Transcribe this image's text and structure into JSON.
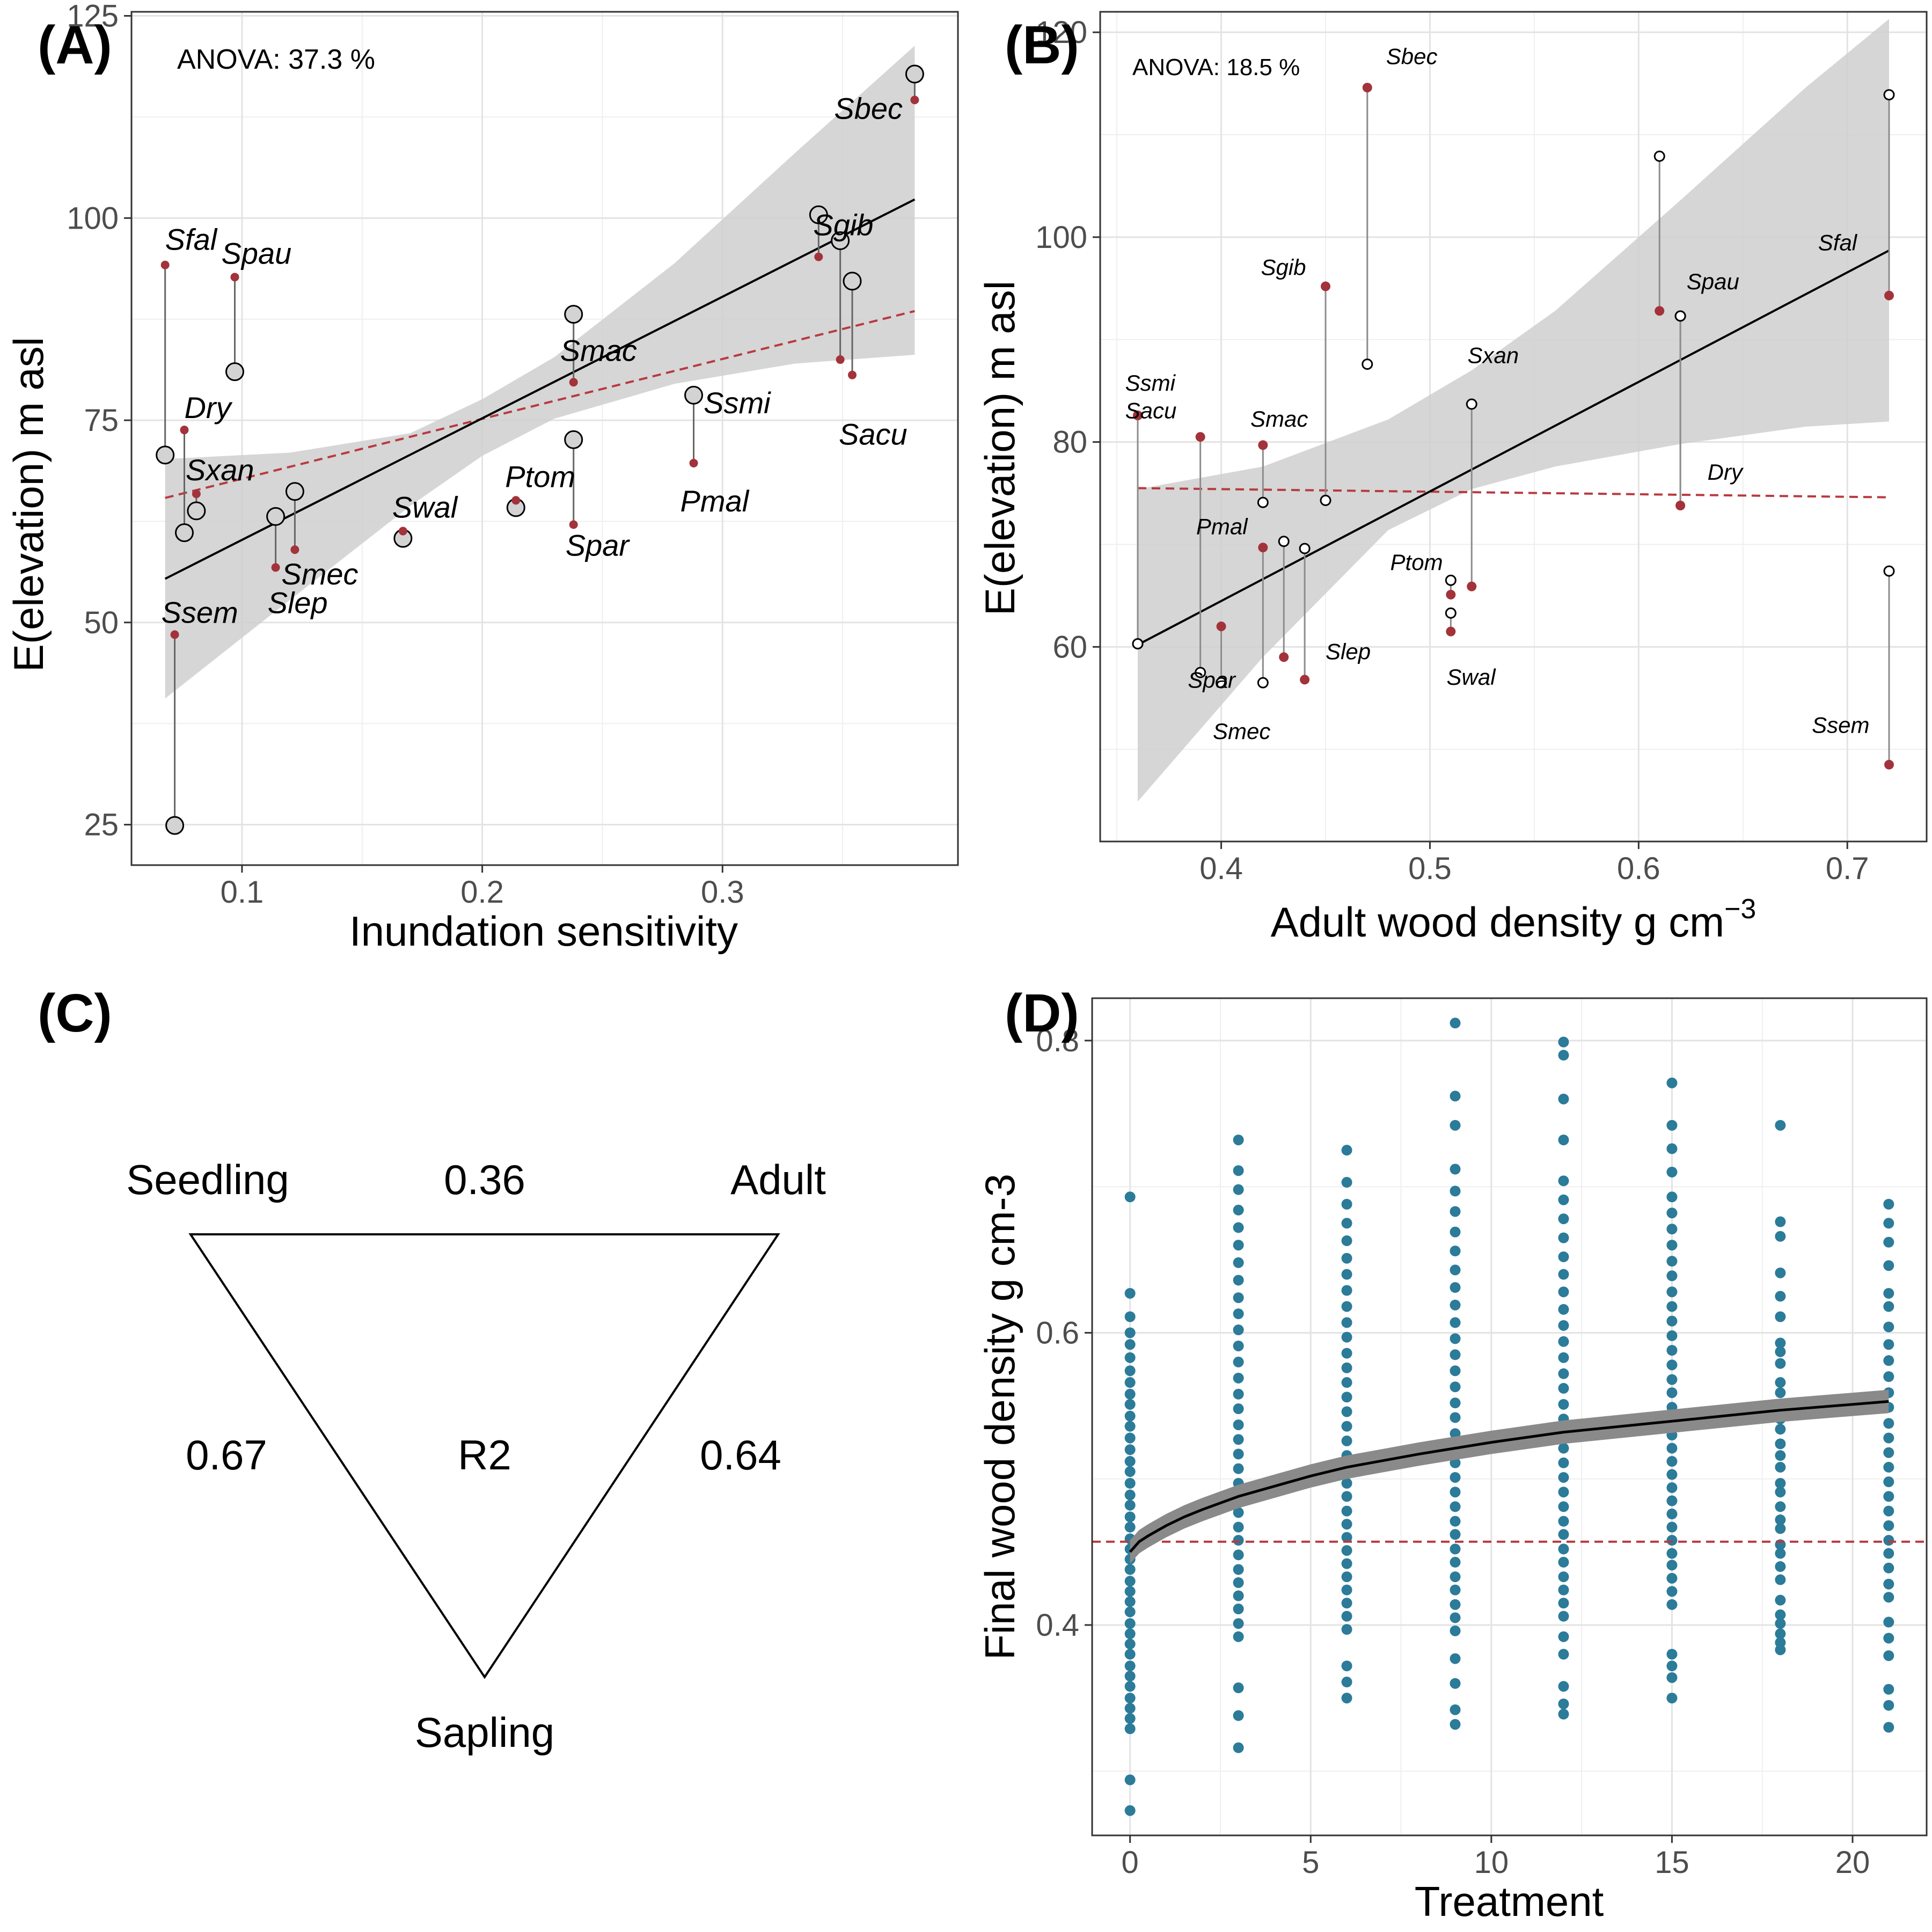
{
  "colors": {
    "seedling_point": "#a3323b",
    "fit_line": "#000000",
    "dashed_line": "#b83a40",
    "ribbon": "#cfcfcf",
    "panel_d_points": "#2b7b99",
    "panel_d_ribbon": "#8a8a8a"
  },
  "chart_data": [
    {
      "panel_label": "(A)",
      "type": "scatter",
      "annotation": "ANOVA: 37.3 %",
      "xlabel": "Inundation sensitivity",
      "ylabel": "E(elevation) m asl",
      "xlim": [
        0.054,
        0.398
      ],
      "ylim": [
        20,
        125.5
      ],
      "xticks": [
        0.1,
        0.2,
        0.3
      ],
      "xtick_labels": [
        "0.1",
        "0.2",
        "0.3"
      ],
      "yticks": [
        25,
        50,
        75,
        100,
        125
      ],
      "ytick_labels": [
        "25",
        "50",
        "75",
        "100",
        "125"
      ],
      "grid": true,
      "species": [
        {
          "label": "Sfal",
          "x": 0.068,
          "seedling": 94.2,
          "adult": 70.7
        },
        {
          "label": "Ssem",
          "x": 0.072,
          "seedling": 48.5,
          "adult": 24.9
        },
        {
          "label": "Dry",
          "x": 0.076,
          "seedling": 73.8,
          "adult": 61.1
        },
        {
          "label": "Sxan",
          "x": 0.081,
          "seedling": 65.9,
          "adult": 63.8
        },
        {
          "label": "Spau",
          "x": 0.097,
          "seedling": 92.7,
          "adult": 81.0
        },
        {
          "label": "Slep",
          "x": 0.114,
          "seedling": 56.8,
          "adult": 63.1
        },
        {
          "label": "Smec",
          "x": 0.122,
          "seedling": 59.0,
          "adult": 66.2
        },
        {
          "label": "Swal",
          "x": 0.167,
          "seedling": 61.3,
          "adult": 60.4
        },
        {
          "label": "Ptom",
          "x": 0.214,
          "seedling": 65.1,
          "adult": 64.2
        },
        {
          "label": "Smac",
          "x": 0.238,
          "seedling": 79.7,
          "adult": 88.1
        },
        {
          "label": "Spar",
          "x": 0.238,
          "seedling": 62.1,
          "adult": 72.6
        },
        {
          "label": "Pmal",
          "x": 0.288,
          "seedling": 69.7,
          "adult": 78.1
        },
        {
          "label": "Sgib",
          "x": 0.34,
          "seedling": 95.2,
          "adult": 100.4
        },
        {
          "label": "Ssmi",
          "x": 0.349,
          "seedling": 82.5,
          "adult": 97.2
        },
        {
          "label": "Sacu",
          "x": 0.354,
          "seedling": 80.6,
          "adult": 92.2
        },
        {
          "label": "Sbec",
          "x": 0.38,
          "seedling": 114.6,
          "adult": 117.8
        }
      ],
      "fit_line": {
        "x": [
          0.068,
          0.38
        ],
        "y": [
          55.4,
          102.3
        ]
      },
      "dashed_line": {
        "x": [
          0.068,
          0.38
        ],
        "y": [
          65.4,
          88.5
        ]
      },
      "ribbon": {
        "x": [
          0.068,
          0.12,
          0.17,
          0.2,
          0.23,
          0.28,
          0.33,
          0.38
        ],
        "lower": [
          40.6,
          52.8,
          64.4,
          70.6,
          75.2,
          79.5,
          82.0,
          83.1
        ],
        "upper": [
          70.2,
          71.0,
          73.4,
          77.6,
          82.8,
          94.4,
          108.0,
          121.3
        ]
      }
    },
    {
      "panel_label": "(B)",
      "type": "scatter",
      "annotation": "ANOVA: 18.5 %",
      "xlabel": "Adult wood density g cm",
      "xlabel_superscript": "−3",
      "ylabel": "E(elevation) m asl",
      "xlim": [
        0.342,
        0.738
      ],
      "ylim": [
        41,
        122
      ],
      "xticks": [
        0.4,
        0.5,
        0.6,
        0.7
      ],
      "xtick_labels": [
        "0.4",
        "0.5",
        "0.6",
        "0.7"
      ],
      "yticks": [
        60,
        80,
        100,
        120
      ],
      "ytick_labels": [
        "60",
        "80",
        "100",
        "120"
      ],
      "grid": true,
      "species": [
        {
          "label": "Ssmi",
          "x": 0.36,
          "seedling": 82.6,
          "adult": 60.3
        },
        {
          "label": "Sacu",
          "x": 0.36,
          "seedling": 82.6,
          "adult": 60.3
        },
        {
          "label": "Spar",
          "x": 0.39,
          "seedling": 80.5,
          "adult": 57.5
        },
        {
          "label": "Smec",
          "x": 0.4,
          "seedling": 62.0,
          "adult": 56.5
        },
        {
          "label": "Smac",
          "x": 0.42,
          "seedling": 79.7,
          "adult": 74.1
        },
        {
          "label": "Pmal",
          "x": 0.42,
          "seedling": 69.7,
          "adult": 56.5
        },
        {
          "label": "Slep",
          "x": 0.43,
          "seedling": 59.0,
          "adult": 70.3
        },
        {
          "label": "",
          "x": 0.44,
          "seedling": 56.8,
          "adult": 69.6
        },
        {
          "label": "Sgib",
          "x": 0.45,
          "seedling": 95.2,
          "adult": 74.3
        },
        {
          "label": "Sbec",
          "x": 0.47,
          "seedling": 114.6,
          "adult": 87.6
        },
        {
          "label": "Ptom",
          "x": 0.51,
          "seedling": 65.1,
          "adult": 66.5
        },
        {
          "label": "Swal",
          "x": 0.51,
          "seedling": 61.5,
          "adult": 63.3
        },
        {
          "label": "Sxan",
          "x": 0.52,
          "seedling": 65.9,
          "adult": 83.7
        },
        {
          "label": "",
          "x": 0.61,
          "seedling": 92.8,
          "adult": 107.9
        },
        {
          "label": "Spau",
          "x": 0.62,
          "seedling": 73.8,
          "adult": 92.3
        },
        {
          "label": "Dry",
          "x": 0.62,
          "seedling": 73.8,
          "adult": 92.3
        },
        {
          "label": "Sfal",
          "x": 0.72,
          "seedling": 94.3,
          "adult": 113.9
        },
        {
          "label": "Ssem",
          "x": 0.72,
          "seedling": 48.5,
          "adult": 67.4
        }
      ],
      "fit_line": {
        "x": [
          0.36,
          0.72
        ],
        "y": [
          60.2,
          98.7
        ]
      },
      "dashed_line": {
        "x": [
          0.36,
          0.72
        ],
        "y": [
          75.5,
          74.6
        ]
      },
      "ribbon": {
        "x": [
          0.36,
          0.42,
          0.48,
          0.52,
          0.56,
          0.62,
          0.68,
          0.72
        ],
        "lower": [
          44.9,
          59.0,
          71.4,
          75.4,
          77.6,
          79.8,
          81.5,
          82.0
        ],
        "upper": [
          75.4,
          77.6,
          82.2,
          87.0,
          92.8,
          103.6,
          114.6,
          121.3
        ]
      }
    },
    {
      "panel_label": "(C)",
      "type": "diagram",
      "center_label": "R2",
      "vertices": {
        "top_left": "Seedling",
        "top_right": "Adult",
        "bottom": "Sapling"
      },
      "edges": {
        "seedling_adult": "0.36",
        "seedling_sapling": "0.67",
        "adult_sapling": "0.64"
      }
    },
    {
      "panel_label": "(D)",
      "type": "scatter",
      "xlabel": "Treatment",
      "ylabel": "Final wood density g cm-3",
      "xlim": [
        -1.05,
        22.05
      ],
      "ylim": [
        0.256,
        0.829
      ],
      "xticks": [
        0,
        5,
        10,
        15,
        20
      ],
      "xtick_labels": [
        "0",
        "5",
        "10",
        "15",
        "20"
      ],
      "yticks": [
        0.4,
        0.6,
        0.8
      ],
      "ytick_labels": [
        "0.4",
        "0.6",
        "0.8"
      ],
      "grid": true,
      "groups": [
        {
          "x": 0,
          "values": [
            0.693,
            0.627,
            0.611,
            0.6,
            0.592,
            0.583,
            0.574,
            0.566,
            0.558,
            0.551,
            0.543,
            0.536,
            0.528,
            0.52,
            0.512,
            0.505,
            0.497,
            0.489,
            0.482,
            0.474,
            0.467,
            0.459,
            0.452,
            0.445,
            0.438,
            0.43,
            0.423,
            0.416,
            0.409,
            0.401,
            0.394,
            0.387,
            0.38,
            0.372,
            0.365,
            0.358,
            0.35,
            0.343,
            0.336,
            0.329,
            0.294,
            0.273
          ]
        },
        {
          "x": 3,
          "values": [
            0.732,
            0.711,
            0.698,
            0.684,
            0.672,
            0.66,
            0.648,
            0.636,
            0.624,
            0.613,
            0.602,
            0.591,
            0.58,
            0.569,
            0.558,
            0.548,
            0.537,
            0.527,
            0.517,
            0.507,
            0.497,
            0.487,
            0.477,
            0.467,
            0.458,
            0.448,
            0.438,
            0.429,
            0.42,
            0.411,
            0.401,
            0.392,
            0.357,
            0.338,
            0.316
          ]
        },
        {
          "x": 6,
          "values": [
            0.725,
            0.703,
            0.688,
            0.675,
            0.663,
            0.651,
            0.64,
            0.629,
            0.618,
            0.607,
            0.597,
            0.586,
            0.576,
            0.566,
            0.556,
            0.546,
            0.536,
            0.526,
            0.516,
            0.507,
            0.497,
            0.488,
            0.478,
            0.469,
            0.46,
            0.451,
            0.442,
            0.433,
            0.424,
            0.415,
            0.406,
            0.397,
            0.372,
            0.361,
            0.35
          ]
        },
        {
          "x": 9,
          "values": [
            0.812,
            0.762,
            0.742,
            0.712,
            0.697,
            0.683,
            0.669,
            0.656,
            0.643,
            0.631,
            0.619,
            0.607,
            0.596,
            0.585,
            0.574,
            0.563,
            0.552,
            0.542,
            0.531,
            0.521,
            0.511,
            0.501,
            0.491,
            0.481,
            0.471,
            0.462,
            0.452,
            0.443,
            0.433,
            0.424,
            0.414,
            0.405,
            0.396,
            0.377,
            0.36,
            0.342,
            0.332
          ]
        },
        {
          "x": 12,
          "values": [
            0.799,
            0.79,
            0.76,
            0.732,
            0.704,
            0.691,
            0.678,
            0.665,
            0.652,
            0.64,
            0.628,
            0.616,
            0.605,
            0.594,
            0.583,
            0.572,
            0.562,
            0.551,
            0.541,
            0.531,
            0.521,
            0.511,
            0.501,
            0.491,
            0.481,
            0.471,
            0.462,
            0.452,
            0.443,
            0.433,
            0.424,
            0.415,
            0.406,
            0.392,
            0.38,
            0.358,
            0.346,
            0.339
          ]
        },
        {
          "x": 15,
          "values": [
            0.771,
            0.742,
            0.726,
            0.71,
            0.693,
            0.682,
            0.671,
            0.66,
            0.649,
            0.639,
            0.628,
            0.618,
            0.608,
            0.598,
            0.588,
            0.578,
            0.568,
            0.559,
            0.549,
            0.54,
            0.53,
            0.521,
            0.512,
            0.503,
            0.494,
            0.485,
            0.476,
            0.467,
            0.458,
            0.449,
            0.441,
            0.432,
            0.423,
            0.414,
            0.38,
            0.372,
            0.364,
            0.35
          ]
        },
        {
          "x": 18,
          "values": [
            0.742,
            0.676,
            0.666,
            0.641,
            0.625,
            0.611,
            0.593,
            0.587,
            0.579,
            0.566,
            0.559,
            0.549,
            0.541,
            0.534,
            0.524,
            0.516,
            0.508,
            0.497,
            0.491,
            0.481,
            0.472,
            0.466,
            0.455,
            0.449,
            0.44,
            0.431,
            0.417,
            0.407,
            0.401,
            0.394,
            0.388,
            0.383
          ]
        },
        {
          "x": 21,
          "values": [
            0.688,
            0.675,
            0.662,
            0.646,
            0.627,
            0.618,
            0.604,
            0.592,
            0.581,
            0.57,
            0.559,
            0.549,
            0.538,
            0.528,
            0.518,
            0.508,
            0.498,
            0.488,
            0.478,
            0.468,
            0.458,
            0.449,
            0.439,
            0.428,
            0.419,
            0.402,
            0.391,
            0.379,
            0.356,
            0.345,
            0.33
          ]
        }
      ],
      "fit_curve": {
        "x": [
          0,
          0.25,
          0.5,
          1,
          1.5,
          2,
          3,
          4,
          5,
          6,
          8,
          10,
          12,
          14,
          16,
          18,
          20,
          21
        ],
        "y": [
          0.45,
          0.457,
          0.461,
          0.468,
          0.474,
          0.479,
          0.488,
          0.495,
          0.502,
          0.508,
          0.517,
          0.525,
          0.532,
          0.537,
          0.542,
          0.547,
          0.551,
          0.553
        ],
        "band_halfwidth": 0.008
      },
      "dashed_line": {
        "y": 0.457
      }
    }
  ]
}
